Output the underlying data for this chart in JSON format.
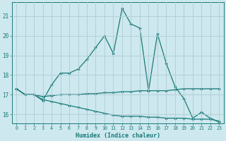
{
  "xlabel": "Humidex (Indice chaleur)",
  "background_color": "#cde8ee",
  "grid_color": "#aecdd4",
  "line_color": "#1a7a78",
  "x_ticks": [
    0,
    1,
    2,
    3,
    4,
    5,
    6,
    7,
    8,
    9,
    10,
    11,
    12,
    13,
    14,
    15,
    16,
    17,
    18,
    19,
    20,
    21,
    22,
    23
  ],
  "y_ticks": [
    16,
    17,
    18,
    19,
    20,
    21
  ],
  "xlim": [
    -0.5,
    23.5
  ],
  "ylim": [
    15.55,
    21.7
  ],
  "line1_y": [
    17.3,
    17.0,
    17.0,
    16.7,
    17.5,
    18.1,
    18.1,
    18.3,
    18.8,
    19.4,
    20.0,
    19.1,
    21.4,
    20.6,
    20.4,
    17.2,
    20.1,
    18.6,
    17.4,
    16.8,
    15.8,
    16.1,
    15.8,
    15.6
  ],
  "line2_y": [
    17.3,
    17.0,
    17.0,
    16.9,
    16.95,
    17.0,
    17.0,
    17.0,
    17.05,
    17.05,
    17.1,
    17.1,
    17.15,
    17.15,
    17.2,
    17.2,
    17.2,
    17.2,
    17.25,
    17.3,
    17.3,
    17.3,
    17.3,
    17.3
  ],
  "line3_y": [
    17.3,
    17.0,
    17.0,
    16.75,
    16.65,
    16.55,
    16.45,
    16.35,
    16.25,
    16.15,
    16.05,
    15.95,
    15.9,
    15.9,
    15.9,
    15.85,
    15.85,
    15.8,
    15.8,
    15.8,
    15.75,
    15.75,
    15.75,
    15.65
  ]
}
